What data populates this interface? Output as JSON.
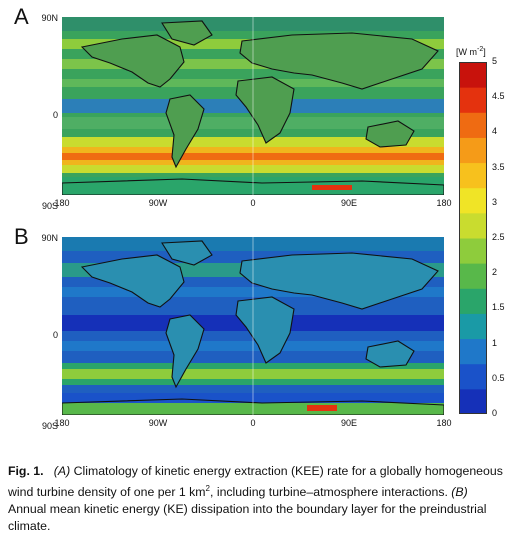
{
  "panels": [
    {
      "letter": "A",
      "lat_labels": [
        "90N",
        "0",
        "90S"
      ],
      "lon_labels": [
        "180",
        "90W",
        "0",
        "90E",
        "180"
      ]
    },
    {
      "letter": "B",
      "lat_labels": [
        "90N",
        "0",
        "90S"
      ],
      "lon_labels": [
        "180",
        "90W",
        "0",
        "90E",
        "180"
      ]
    }
  ],
  "colorbar": {
    "unit_main": "[W m",
    "unit_sup": "-2",
    "unit_end": "]",
    "ticks": [
      "5",
      "4.5",
      "4",
      "3.5",
      "3",
      "2.5",
      "2",
      "1.5",
      "1",
      "0.5",
      "0"
    ],
    "colors": [
      "#1530b8",
      "#1a52c9",
      "#1f78c9",
      "#1a9aa6",
      "#2aa56a",
      "#58b84a",
      "#8ecc3c",
      "#c9dc2f",
      "#f0e426",
      "#f7c11d",
      "#f59b18",
      "#ef6b12",
      "#e4320e",
      "#c8120c"
    ]
  },
  "caption": {
    "label": "Fig. 1.",
    "part_a_marker": "(A)",
    "part_a_text": " Climatology of kinetic energy extraction (KEE) rate for a globally homogeneous wind turbine density of one per 1 km",
    "part_a_sup": "2",
    "part_a_text2": ", including turbine–atmosphere interactions. ",
    "part_b_marker": "(B)",
    "part_b_text": " Annual mean kinetic energy (KE) dissipation into the boundary layer for the preindustrial climate."
  }
}
